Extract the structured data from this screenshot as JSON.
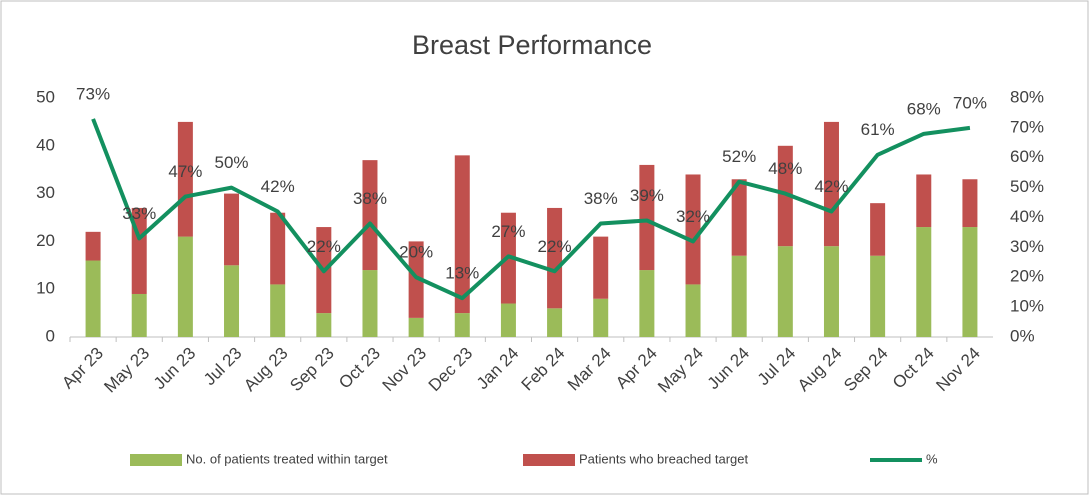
{
  "chart_data": {
    "type": "bar",
    "title": "Breast Performance",
    "categories": [
      "Apr 23",
      "May 23",
      "Jun 23",
      "Jul 23",
      "Aug 23",
      "Sep 23",
      "Oct 23",
      "Nov 23",
      "Dec 23",
      "Jan 24",
      "Feb 24",
      "Mar 24",
      "Apr 24",
      "May 24",
      "Jun 24",
      "Jul 24",
      "Aug 24",
      "Sep 24",
      "Oct 24",
      "Nov 24"
    ],
    "series": [
      {
        "name": "No. of patients treated within target",
        "type": "bar",
        "color": "#9bbb59",
        "values": [
          16,
          9,
          21,
          15,
          11,
          5,
          14,
          4,
          5,
          7,
          6,
          8,
          14,
          11,
          17,
          19,
          19,
          17,
          23,
          23
        ]
      },
      {
        "name": "Patients who breached target",
        "type": "bar",
        "color": "#c0504d",
        "values": [
          6,
          18,
          24,
          15,
          15,
          18,
          23,
          16,
          33,
          19,
          21,
          13,
          22,
          23,
          16,
          21,
          26,
          11,
          11,
          10
        ]
      },
      {
        "name": "%",
        "type": "line",
        "axis": "y2",
        "color": "#13905f",
        "values": [
          73,
          33,
          47,
          50,
          42,
          22,
          38,
          20,
          13,
          27,
          22,
          38,
          39,
          32,
          52,
          48,
          42,
          61,
          68,
          70
        ],
        "value_labels": [
          "73%",
          "33%",
          "47%",
          "50%",
          "42%",
          "22%",
          "38%",
          "20%",
          "13%",
          "27%",
          "22%",
          "38%",
          "39%",
          "32%",
          "52%",
          "48%",
          "42%",
          "61%",
          "68%",
          "70%"
        ]
      }
    ],
    "stacked": true,
    "ylim": [
      0,
      50
    ],
    "yticks": [
      0,
      10,
      20,
      30,
      40,
      50
    ],
    "y2lim": [
      0,
      80
    ],
    "y2ticks": [
      {
        "value": 0,
        "label": "0%"
      },
      {
        "value": 10,
        "label": "10%"
      },
      {
        "value": 20,
        "label": "20%"
      },
      {
        "value": 30,
        "label": "30%"
      },
      {
        "value": 40,
        "label": "40%"
      },
      {
        "value": 50,
        "label": "50%"
      },
      {
        "value": 60,
        "label": "60%"
      },
      {
        "value": 70,
        "label": "70%"
      },
      {
        "value": 80,
        "label": "80%"
      }
    ],
    "grid": false,
    "legend": "bottom"
  }
}
